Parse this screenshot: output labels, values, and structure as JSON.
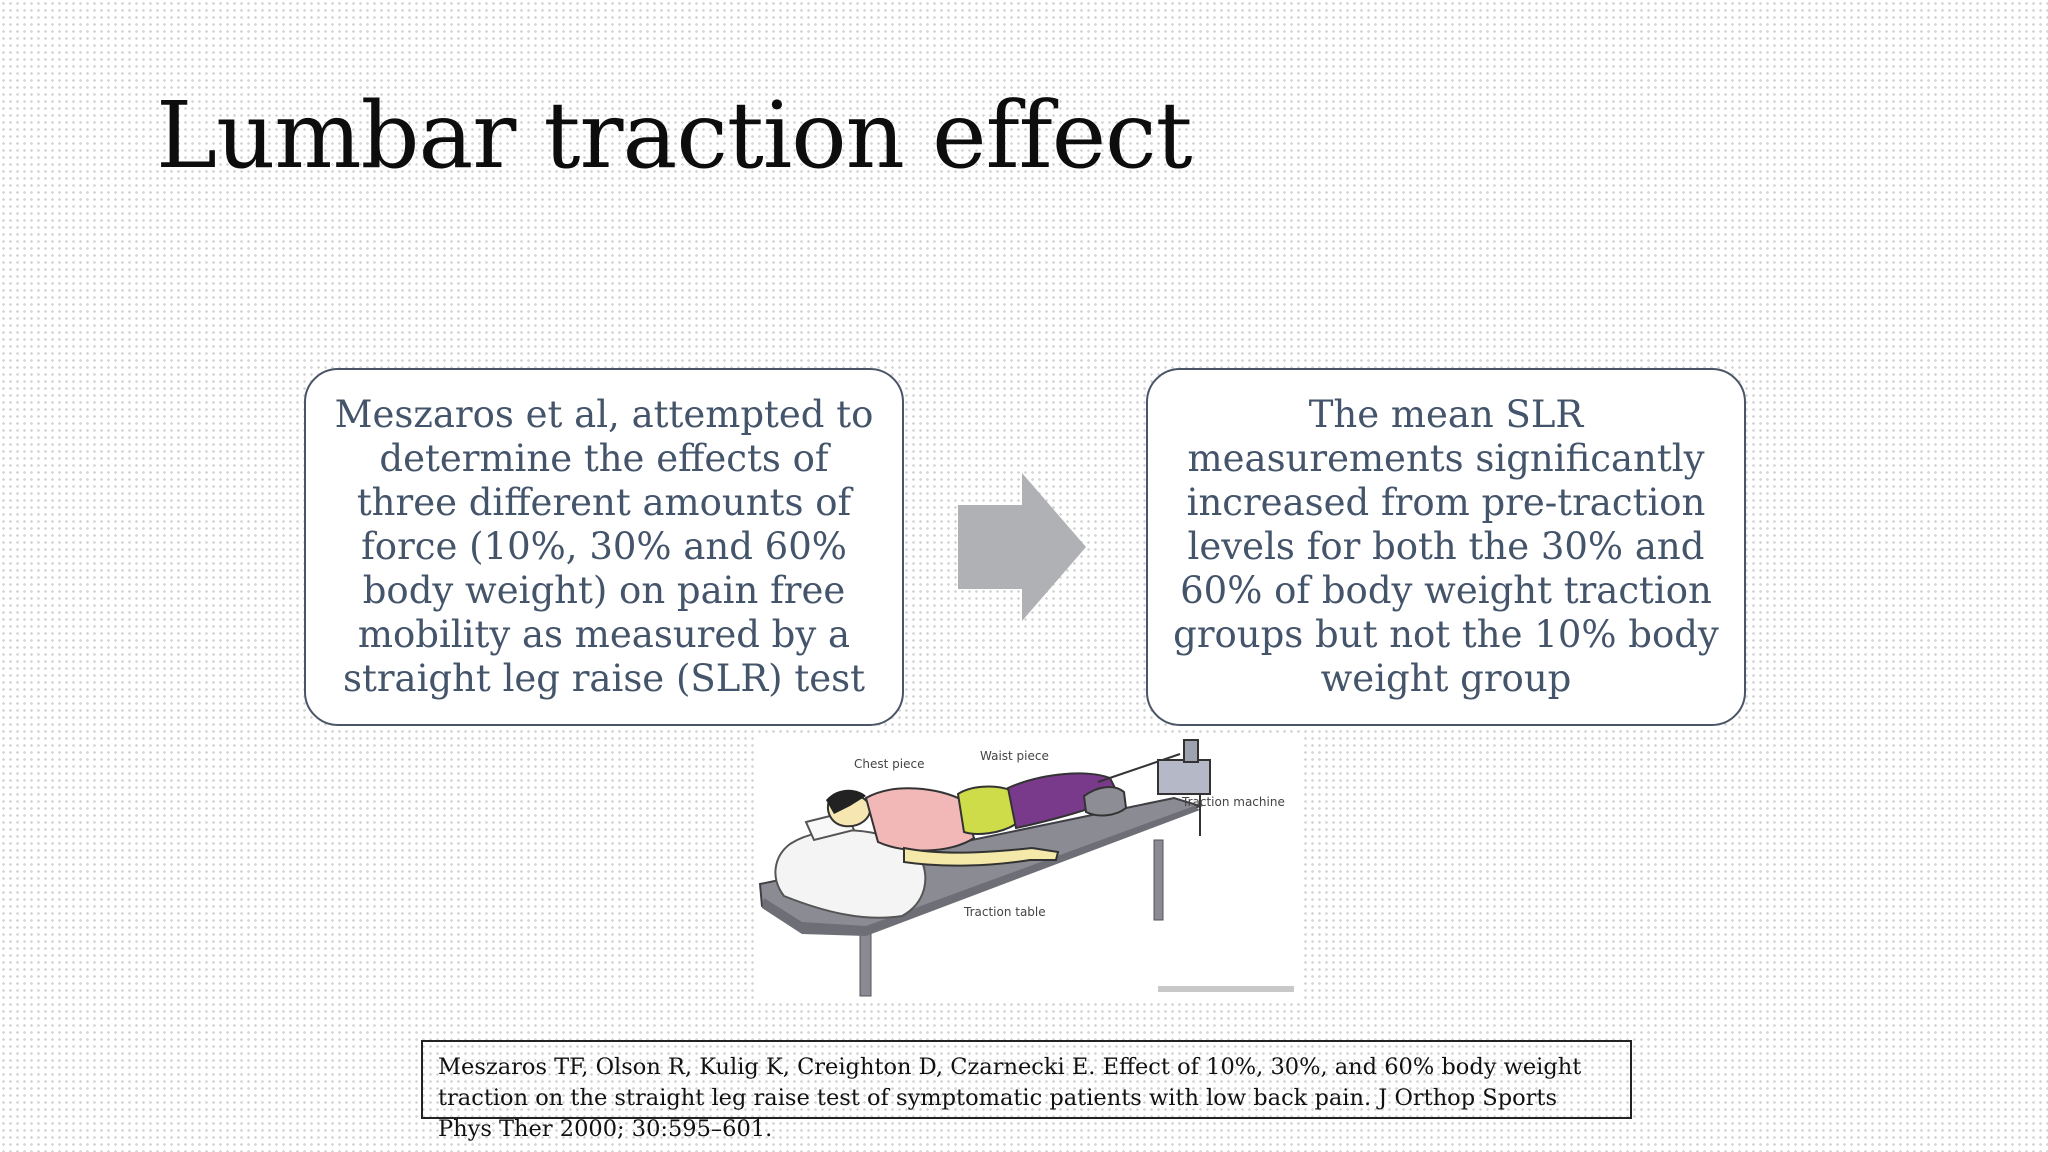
{
  "slide": {
    "title": "Lumbar traction effect"
  },
  "left_box": {
    "text": "Meszaros et al, attempted to determine the effects of three different amounts of force (10%, 30% and 60% body weight) on pain free mobility as measured by a straight leg raise (SLR) test"
  },
  "arrow": {
    "icon": "right-arrow-icon",
    "color": "#b0b1b5"
  },
  "right_box": {
    "text": "The mean SLR measurements significantly increased from pre-traction levels for both the 30% and 60% of body weight traction groups but not the 10% body weight group"
  },
  "illustration": {
    "labels": {
      "chest_piece": "Chest piece",
      "waist_piece": "Waist piece",
      "traction_machine": "Traction machine",
      "traction_table": "Traction table"
    }
  },
  "citation": {
    "text": "Meszaros TF, Olson R, Kulig K, Creighton D, Czarnecki E. Effect of 10%, 30%, and 60% body weight traction on the straight leg raise test of symptomatic patients with low back pain. J Orthop Sports Phys Ther 2000; 30:595–601."
  },
  "colors": {
    "title": "#0d0d0d",
    "box_text": "#44546a",
    "box_border": "#4a5568",
    "arrow": "#b0b1b5"
  }
}
